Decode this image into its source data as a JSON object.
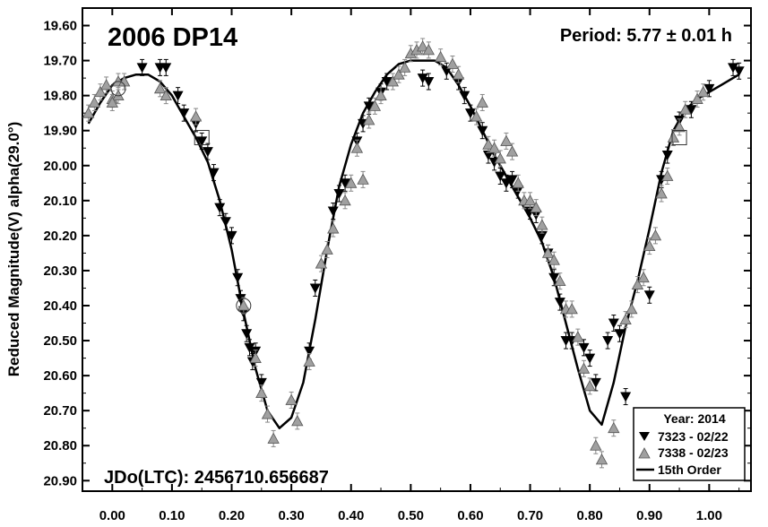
{
  "chart_data": {
    "type": "scatter",
    "title": "2006 DP14",
    "period_label": "Period: 5.77 ± 0.01 h",
    "jd_label": "JDo(LTC): 2456710.656687",
    "ylabel": "Reduced Magnitude(V) alpha(29.0°)",
    "xlabel": "",
    "xlim": [
      -0.05,
      1.07
    ],
    "ylim": [
      19.55,
      20.93
    ],
    "y_inverted": true,
    "grid": false,
    "legend_position": "bottom-right",
    "x_ticks": [
      "0.00",
      "0.10",
      "0.20",
      "0.30",
      "0.40",
      "0.50",
      "0.60",
      "0.70",
      "0.80",
      "0.90",
      "1.00"
    ],
    "y_ticks": [
      "19.60",
      "19.70",
      "19.80",
      "19.90",
      "20.00",
      "20.10",
      "20.20",
      "20.30",
      "20.40",
      "20.50",
      "20.60",
      "20.70",
      "20.80",
      "20.90"
    ],
    "legend": {
      "title": "Year: 2014",
      "items": [
        "7323 - 02/22",
        "7338 - 02/23",
        "15th Order"
      ]
    },
    "series": [
      {
        "name": "7323 - 02/22",
        "marker": "triangle-down",
        "color": "#000000",
        "points": [
          [
            0.05,
            19.72
          ],
          [
            0.08,
            19.72
          ],
          [
            0.09,
            19.72
          ],
          [
            0.11,
            19.8
          ],
          [
            0.12,
            19.85
          ],
          [
            0.14,
            19.88
          ],
          [
            0.15,
            19.93
          ],
          [
            0.16,
            19.96
          ],
          [
            0.17,
            20.02
          ],
          [
            0.18,
            20.12
          ],
          [
            0.19,
            20.16
          ],
          [
            0.2,
            20.2
          ],
          [
            0.21,
            20.32
          ],
          [
            0.215,
            20.38
          ],
          [
            0.22,
            20.42
          ],
          [
            0.225,
            20.48
          ],
          [
            0.23,
            20.52
          ],
          [
            0.235,
            20.56
          ],
          [
            0.24,
            20.53
          ],
          [
            0.25,
            20.62
          ],
          [
            0.33,
            20.53
          ],
          [
            0.34,
            20.35
          ],
          [
            0.37,
            20.13
          ],
          [
            0.38,
            20.08
          ],
          [
            0.39,
            20.05
          ],
          [
            0.41,
            19.93
          ],
          [
            0.42,
            19.88
          ],
          [
            0.43,
            19.83
          ],
          [
            0.45,
            19.79
          ],
          [
            0.46,
            19.76
          ],
          [
            0.52,
            19.75
          ],
          [
            0.53,
            19.76
          ],
          [
            0.56,
            19.73
          ],
          [
            0.58,
            19.76
          ],
          [
            0.59,
            19.8
          ],
          [
            0.6,
            19.85
          ],
          [
            0.62,
            19.9
          ],
          [
            0.63,
            19.97
          ],
          [
            0.64,
            19.99
          ],
          [
            0.65,
            20.03
          ],
          [
            0.66,
            20.05
          ],
          [
            0.67,
            20.04
          ],
          [
            0.68,
            20.07
          ],
          [
            0.7,
            20.13
          ],
          [
            0.71,
            20.14
          ],
          [
            0.72,
            20.2
          ],
          [
            0.73,
            20.25
          ],
          [
            0.74,
            20.32
          ],
          [
            0.75,
            20.39
          ],
          [
            0.76,
            20.5
          ],
          [
            0.77,
            20.5
          ],
          [
            0.79,
            20.52
          ],
          [
            0.8,
            20.55
          ],
          [
            0.81,
            20.62
          ],
          [
            0.83,
            20.5
          ],
          [
            0.84,
            20.45
          ],
          [
            0.85,
            20.48
          ],
          [
            0.86,
            20.66
          ],
          [
            0.9,
            20.37
          ],
          [
            0.92,
            20.04
          ],
          [
            0.93,
            19.97
          ],
          [
            0.95,
            19.87
          ],
          [
            0.97,
            19.84
          ],
          [
            1.0,
            19.78
          ],
          [
            1.04,
            19.72
          ],
          [
            1.05,
            19.73
          ]
        ]
      },
      {
        "name": "7338 - 02/23",
        "marker": "triangle-up",
        "color": "#a0a0a0",
        "points": [
          [
            -0.04,
            19.85
          ],
          [
            -0.03,
            19.82
          ],
          [
            -0.02,
            19.79
          ],
          [
            -0.01,
            19.77
          ],
          [
            0.0,
            19.81
          ],
          [
            0.01,
            19.8
          ],
          [
            0.01,
            19.76
          ],
          [
            0.0,
            19.82
          ],
          [
            0.02,
            19.76
          ],
          [
            0.08,
            19.78
          ],
          [
            0.09,
            19.8
          ],
          [
            0.14,
            19.86
          ],
          [
            0.22,
            20.4
          ],
          [
            0.24,
            20.55
          ],
          [
            0.25,
            20.65
          ],
          [
            0.26,
            20.71
          ],
          [
            0.27,
            20.78
          ],
          [
            0.3,
            20.67
          ],
          [
            0.31,
            20.73
          ],
          [
            0.33,
            20.56
          ],
          [
            0.35,
            20.28
          ],
          [
            0.36,
            20.24
          ],
          [
            0.37,
            20.18
          ],
          [
            0.39,
            20.1
          ],
          [
            0.4,
            20.05
          ],
          [
            0.41,
            19.95
          ],
          [
            0.42,
            20.04
          ],
          [
            0.43,
            19.87
          ],
          [
            0.44,
            19.83
          ],
          [
            0.45,
            19.8
          ],
          [
            0.47,
            19.76
          ],
          [
            0.48,
            19.74
          ],
          [
            0.49,
            19.72
          ],
          [
            0.5,
            19.68
          ],
          [
            0.51,
            19.67
          ],
          [
            0.52,
            19.66
          ],
          [
            0.53,
            19.67
          ],
          [
            0.55,
            19.69
          ],
          [
            0.57,
            19.71
          ],
          [
            0.58,
            19.74
          ],
          [
            0.61,
            19.86
          ],
          [
            0.62,
            19.82
          ],
          [
            0.63,
            19.94
          ],
          [
            0.64,
            19.95
          ],
          [
            0.65,
            19.98
          ],
          [
            0.66,
            19.93
          ],
          [
            0.67,
            19.96
          ],
          [
            0.68,
            20.05
          ],
          [
            0.69,
            20.1
          ],
          [
            0.7,
            20.1
          ],
          [
            0.71,
            20.12
          ],
          [
            0.72,
            20.17
          ],
          [
            0.73,
            20.25
          ],
          [
            0.74,
            20.27
          ],
          [
            0.75,
            20.33
          ],
          [
            0.76,
            20.41
          ],
          [
            0.77,
            20.41
          ],
          [
            0.78,
            20.49
          ],
          [
            0.79,
            20.58
          ],
          [
            0.8,
            20.63
          ],
          [
            0.81,
            20.8
          ],
          [
            0.82,
            20.84
          ],
          [
            0.84,
            20.75
          ],
          [
            0.86,
            20.44
          ],
          [
            0.87,
            20.41
          ],
          [
            0.88,
            20.34
          ],
          [
            0.89,
            20.32
          ],
          [
            0.9,
            20.23
          ],
          [
            0.91,
            20.2
          ],
          [
            0.92,
            20.08
          ],
          [
            0.93,
            20.03
          ],
          [
            0.94,
            19.92
          ],
          [
            0.95,
            19.89
          ],
          [
            0.96,
            19.84
          ],
          [
            0.98,
            19.81
          ],
          [
            0.99,
            19.79
          ]
        ]
      }
    ],
    "fit": {
      "name": "15th Order",
      "points": [
        [
          -0.04,
          19.88
        ],
        [
          -0.02,
          19.82
        ],
        [
          0.0,
          19.77
        ],
        [
          0.02,
          19.75
        ],
        [
          0.04,
          19.74
        ],
        [
          0.06,
          19.74
        ],
        [
          0.08,
          19.76
        ],
        [
          0.1,
          19.8
        ],
        [
          0.12,
          19.86
        ],
        [
          0.14,
          19.92
        ],
        [
          0.16,
          19.99
        ],
        [
          0.18,
          20.1
        ],
        [
          0.2,
          20.24
        ],
        [
          0.22,
          20.42
        ],
        [
          0.24,
          20.58
        ],
        [
          0.26,
          20.7
        ],
        [
          0.28,
          20.75
        ],
        [
          0.3,
          20.72
        ],
        [
          0.32,
          20.62
        ],
        [
          0.34,
          20.44
        ],
        [
          0.36,
          20.24
        ],
        [
          0.38,
          20.06
        ],
        [
          0.4,
          19.94
        ],
        [
          0.42,
          19.85
        ],
        [
          0.44,
          19.79
        ],
        [
          0.46,
          19.74
        ],
        [
          0.48,
          19.71
        ],
        [
          0.5,
          19.7
        ],
        [
          0.52,
          19.7
        ],
        [
          0.54,
          19.7
        ],
        [
          0.56,
          19.72
        ],
        [
          0.58,
          19.77
        ],
        [
          0.6,
          19.83
        ],
        [
          0.62,
          19.9
        ],
        [
          0.64,
          19.97
        ],
        [
          0.66,
          20.03
        ],
        [
          0.68,
          20.09
        ],
        [
          0.7,
          20.15
        ],
        [
          0.72,
          20.22
        ],
        [
          0.74,
          20.32
        ],
        [
          0.76,
          20.45
        ],
        [
          0.78,
          20.58
        ],
        [
          0.8,
          20.7
        ],
        [
          0.82,
          20.74
        ],
        [
          0.84,
          20.62
        ],
        [
          0.86,
          20.46
        ],
        [
          0.88,
          20.33
        ],
        [
          0.9,
          20.18
        ],
        [
          0.92,
          20.02
        ],
        [
          0.94,
          19.9
        ],
        [
          0.96,
          19.84
        ],
        [
          0.98,
          19.81
        ],
        [
          1.0,
          19.79
        ],
        [
          1.02,
          19.77
        ],
        [
          1.04,
          19.75
        ],
        [
          1.05,
          19.74
        ]
      ]
    },
    "comparison_markers": [
      {
        "shape": "circle",
        "x": 0.22,
        "y": 20.4
      },
      {
        "shape": "circle",
        "x": 0.01,
        "y": 19.78
      },
      {
        "shape": "square",
        "x": 0.15,
        "y": 19.92
      },
      {
        "shape": "square",
        "x": 0.95,
        "y": 19.92
      }
    ]
  }
}
